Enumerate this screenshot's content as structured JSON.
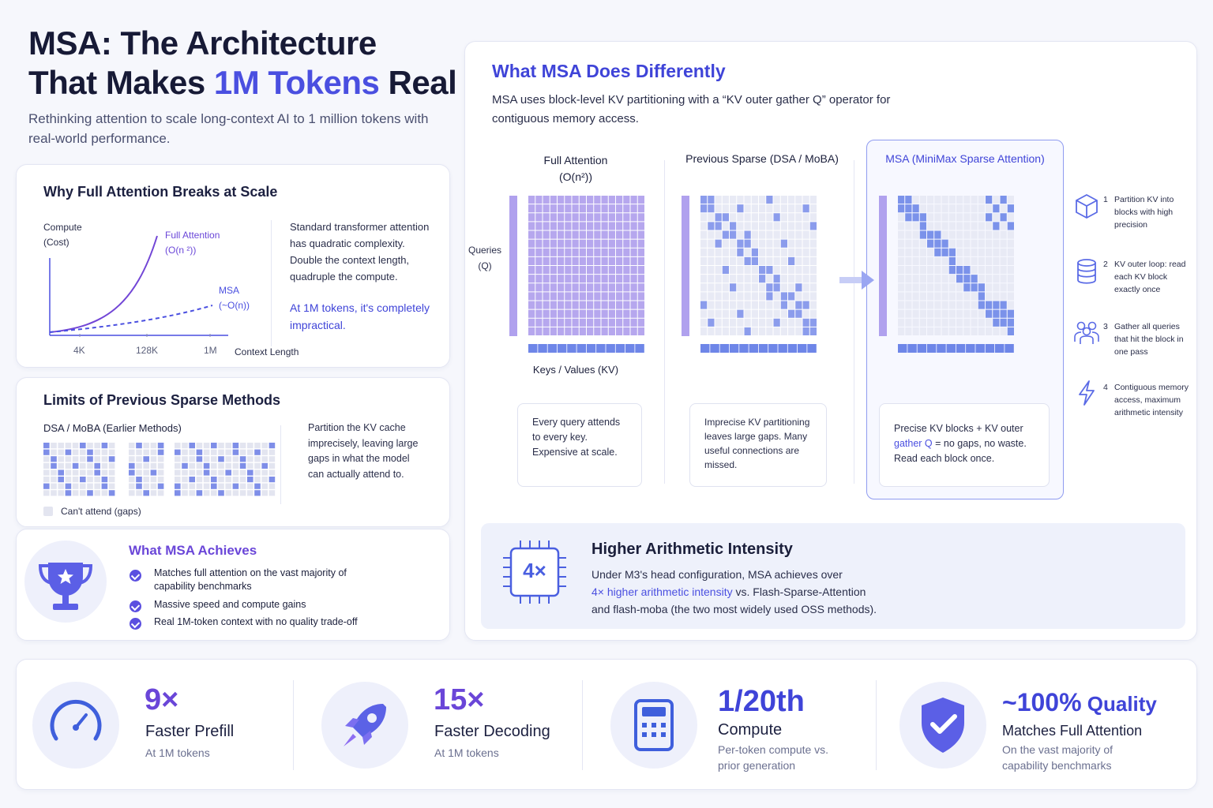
{
  "header": {
    "title_line1": "MSA: The Architecture",
    "title_line2_pre": "That Makes ",
    "title_line2_accent": "1M Tokens",
    "title_line2_post": " Real",
    "subtitle": "Rethinking attention to scale long-context AI to 1 million tokens with real-world performance."
  },
  "why_full": {
    "heading": "Why Full Attention Breaks at Scale",
    "y_label_1": "Compute",
    "y_label_2": "(Cost)",
    "full_label_1": "Full Attention",
    "full_label_2": "(O(n ²))",
    "msa_label_1": "MSA",
    "msa_label_2": "(~O(n))",
    "x_ticks": [
      "4K",
      "128K",
      "1M"
    ],
    "x_label": "Context Length",
    "body": "Standard transformer attention has quadratic complexity. Double the context length, quadruple the compute.",
    "emph": "At 1M tokens, it's completely impractical."
  },
  "limits": {
    "heading": "Limits of Previous Sparse Methods",
    "sub": "DSA / MoBA (Earlier Methods)",
    "legend": "Can't attend (gaps)",
    "body": "Partition the KV cache imprecisely, leaving large gaps in what the model can actually attend to."
  },
  "achieves": {
    "heading": "What MSA Achieves",
    "items": [
      "Matches full attention on the vast majority of capability benchmarks",
      "Massive speed and compute gains",
      "Real 1M-token context with no quality trade-off"
    ],
    "icon": "trophy-icon"
  },
  "differently": {
    "heading": "What MSA Does Differently",
    "desc": "MSA uses block-level KV partitioning with a “KV outer gather Q” operator for contiguous memory access.",
    "queries_label_1": "Queries",
    "queries_label_2": "(Q)",
    "keys_label": "Keys / Values (KV)",
    "panels": [
      {
        "title": "Full Attention",
        "subtitle": "(O(n²))",
        "box": "Every query attends to every key. Expensive at scale."
      },
      {
        "title": "Previous Sparse (DSA / MoBA)",
        "subtitle": "",
        "box": "Imprecise KV partitioning leaves large gaps. Many useful connections are missed."
      },
      {
        "title": "MSA (MiniMax Sparse Attention)",
        "subtitle": "",
        "box_pre": "Precise KV blocks + KV outer ",
        "box_accent": "gather Q",
        "box_post": " = no gaps, no waste. Read each block once."
      }
    ],
    "steps": [
      {
        "num": "1",
        "text": "Partition KV into blocks with high precision",
        "icon": "cube-icon"
      },
      {
        "num": "2",
        "text": "KV outer loop: read each KV block exactly once",
        "icon": "database-icon"
      },
      {
        "num": "3",
        "text": "Gather all queries that hit the block in one pass",
        "icon": "users-icon"
      },
      {
        "num": "4",
        "text": "Contiguous memory access, maximum arithmetic intensity",
        "icon": "lightning-icon"
      }
    ]
  },
  "intensity": {
    "chip": "4×",
    "heading": "Higher Arithmetic Intensity",
    "line1": "Under M3's head configuration, MSA achieves over",
    "line2_accent": "4× higher arithmetic intensity",
    "line2_post": " vs. Flash-Sparse-Attention",
    "line3": "and flash-moba (the two most widely used OSS methods)."
  },
  "stats": [
    {
      "big": "9×",
      "label": "Faster Prefill",
      "sub": "At 1M tokens",
      "icon": "speedometer-icon"
    },
    {
      "big": "15×",
      "label": "Faster Decoding",
      "sub": "At 1M tokens",
      "icon": "rocket-icon"
    },
    {
      "big": "1/20th",
      "label": "Compute",
      "sub": "Per-token compute vs. prior generation",
      "icon": "calculator-icon"
    },
    {
      "big": "~100%",
      "big_suffix": " Quality",
      "label": "Matches Full Attention",
      "sub": "On the vast majority of capability benchmarks",
      "icon": "shield-check-icon"
    }
  ],
  "colors": {
    "accent": "#4a4fe0",
    "purple": "#6a46d8",
    "grid_full": "#b7a9ef",
    "grid_light": "#e6e8f4",
    "block": "#6e86e8"
  }
}
